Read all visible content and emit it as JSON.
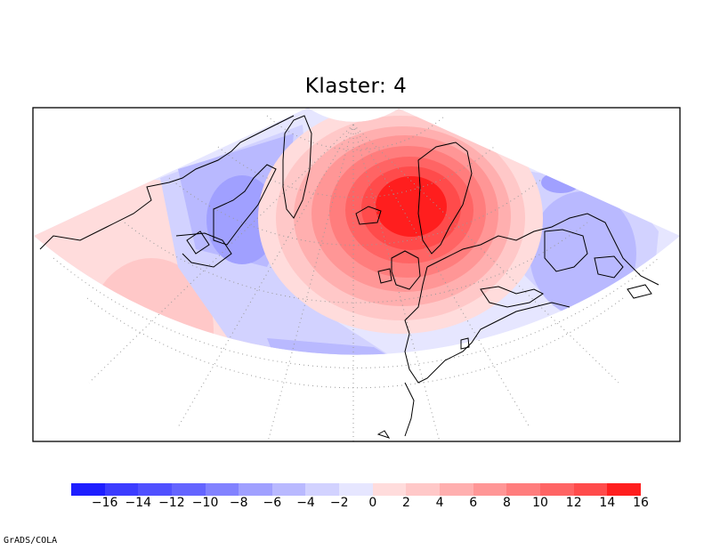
{
  "title": "Klaster: 4",
  "footer": "GrADS/COLA",
  "colorbar": {
    "colors": [
      "#1e1eff",
      "#3c3cff",
      "#5050ff",
      "#6464ff",
      "#8282ff",
      "#a0a0ff",
      "#b9b9ff",
      "#d2d2ff",
      "#e6e6ff",
      "#ffdcdc",
      "#ffc8c8",
      "#ffafaf",
      "#ff9696",
      "#ff7d7d",
      "#ff6464",
      "#ff4b4b",
      "#ff1e1e"
    ],
    "labels": [
      "−16",
      "−14",
      "−12",
      "−10",
      "−8",
      "−6",
      "−4",
      "−2",
      "0",
      "2",
      "4",
      "6",
      "8",
      "10",
      "12",
      "14",
      "16"
    ]
  },
  "chart_data": {
    "type": "heatmap",
    "title": "Klaster: 4",
    "levels": [
      -16,
      -14,
      -12,
      -10,
      -8,
      -6,
      -4,
      -2,
      0,
      2,
      4,
      6,
      8,
      10,
      12,
      14,
      16
    ],
    "features": [
      {
        "name": "positive-anomaly-center",
        "region": "North Atlantic near Iceland / British Isles / Scandinavia",
        "max_value": 16
      },
      {
        "name": "negative-anomaly",
        "region": "Greenland / Canadian Arctic",
        "min_value": -8
      },
      {
        "name": "negative-anomaly",
        "region": "mid-Atlantic (Azores)",
        "min_value": -6
      },
      {
        "name": "negative-anomaly",
        "region": "Eastern Europe / Russia",
        "min_value": -6
      },
      {
        "name": "positive-anomaly",
        "region": "western North Atlantic / North America",
        "max_value": 4
      }
    ]
  }
}
